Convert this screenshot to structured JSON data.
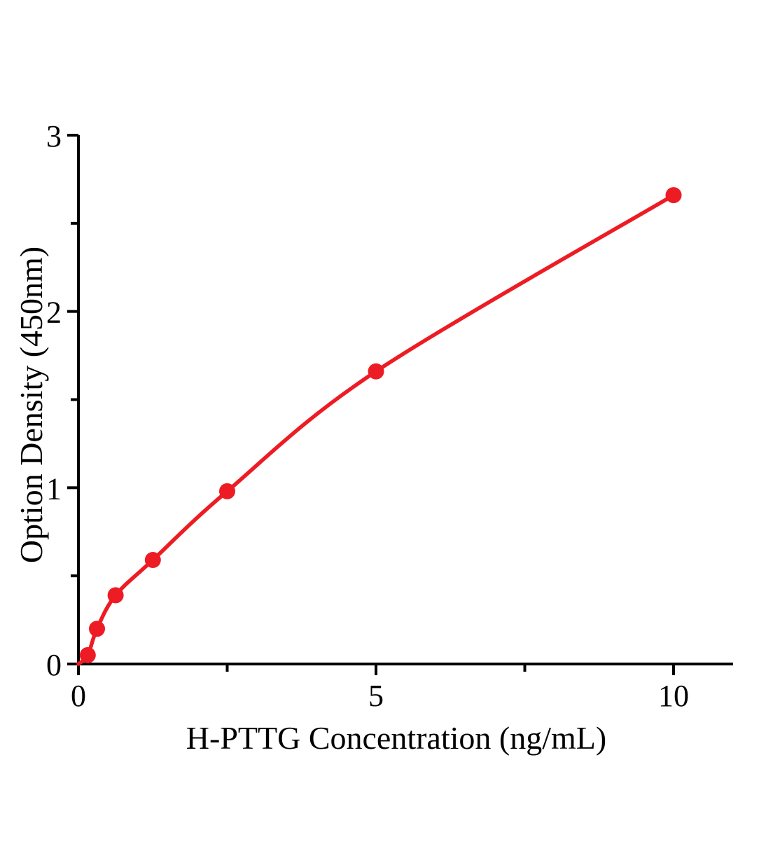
{
  "chart_data": {
    "type": "scatter",
    "xlabel": "H-PTTG Concentration（ng/mL）",
    "ylabel": "Option Density（450nm）",
    "x": [
      0.156,
      0.312,
      0.625,
      1.25,
      2.5,
      5,
      10
    ],
    "y": [
      0.05,
      0.2,
      0.39,
      0.59,
      0.98,
      1.66,
      2.66
    ],
    "curve_start": {
      "x": 0,
      "y": 0
    },
    "xlim": [
      0,
      11
    ],
    "ylim": [
      0,
      3
    ],
    "x_major_ticks": [
      0,
      5,
      10
    ],
    "x_major_tick_labels": [
      "0",
      "5",
      "10"
    ],
    "x_minor_ticks": [
      2.5,
      7.5
    ],
    "y_major_ticks": [
      0,
      1,
      2,
      3
    ],
    "y_major_tick_labels": [
      "0",
      "1",
      "2",
      "3"
    ],
    "y_minor_ticks": [
      0.5,
      1.5,
      2.5
    ],
    "grid": false,
    "legend_position": "none",
    "line_color": "#ed1c24",
    "marker_color": "#ed1c24",
    "axis_color": "#000000",
    "background_color": "#ffffff"
  }
}
